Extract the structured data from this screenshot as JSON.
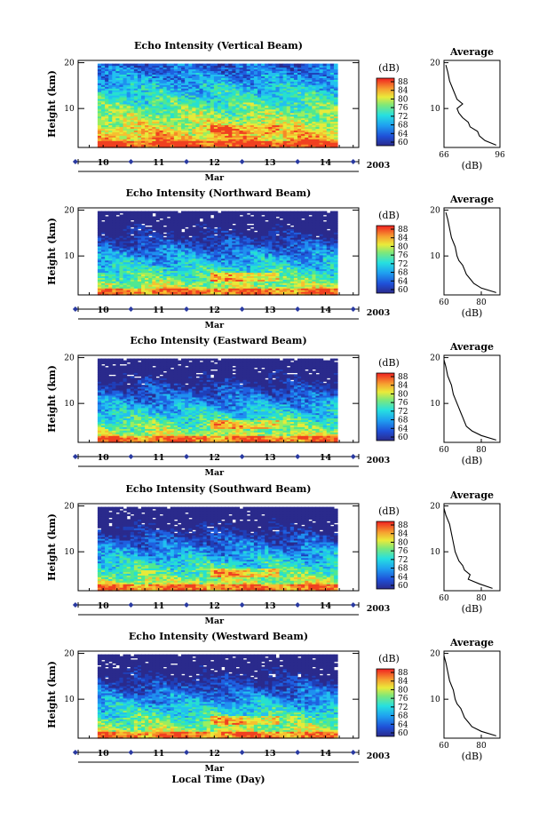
{
  "chart_data": [
    {
      "type": "heatmap",
      "title": "Echo Intensity (Vertical Beam)",
      "ylabel": "Height (km)",
      "yticks": [
        10,
        20
      ],
      "ylim": [
        1.5,
        20.5
      ],
      "x_tick_labels": [
        "10",
        "11",
        "12",
        "13",
        "14"
      ],
      "month_label": "Mar",
      "year_label": "2003",
      "colorbar": {
        "label": "(dB)",
        "ticks": [
          "60",
          "64",
          "68",
          "72",
          "76",
          "80",
          "84",
          "88"
        ],
        "range": [
          60,
          88
        ]
      },
      "data_extent_days": [
        9.9,
        14.1
      ],
      "profile": {
        "title": "Average",
        "xlabel": "(dB)",
        "xticks": [
          "66",
          "96"
        ],
        "xlim": [
          66,
          96
        ],
        "yticks": [
          10,
          20
        ],
        "height_km": [
          19.5,
          18,
          16,
          14,
          12,
          11,
          10,
          9,
          8,
          7,
          6,
          5,
          4,
          3,
          2
        ],
        "avg_db": [
          67,
          68,
          69,
          71,
          73,
          76,
          73,
          74,
          76,
          79,
          80,
          84,
          85,
          88,
          94
        ]
      }
    },
    {
      "type": "heatmap",
      "title": "Echo Intensity (Northward Beam)",
      "ylabel": "Height (km)",
      "yticks": [
        10,
        20
      ],
      "ylim": [
        1.5,
        20.5
      ],
      "x_tick_labels": [
        "10",
        "11",
        "12",
        "13",
        "14"
      ],
      "month_label": "Mar",
      "year_label": "2003",
      "colorbar": {
        "label": "(dB)",
        "ticks": [
          "60",
          "64",
          "68",
          "72",
          "76",
          "80",
          "84",
          "88"
        ],
        "range": [
          60,
          88
        ]
      },
      "data_extent_days": [
        9.9,
        14.1
      ],
      "profile": {
        "title": "Average",
        "xlabel": "(dB)",
        "xticks": [
          "60",
          "80"
        ],
        "xlim": [
          60,
          90
        ],
        "yticks": [
          10,
          20
        ],
        "height_km": [
          19.5,
          18,
          16,
          14,
          12,
          10,
          9,
          8,
          7,
          6,
          5,
          4,
          3,
          2
        ],
        "avg_db": [
          61,
          62,
          63,
          64,
          66,
          67,
          68,
          70,
          71,
          72,
          74,
          76,
          80,
          88
        ]
      }
    },
    {
      "type": "heatmap",
      "title": "Echo Intensity (Eastward Beam)",
      "ylabel": "Height (km)",
      "yticks": [
        10,
        20
      ],
      "ylim": [
        1.5,
        20.5
      ],
      "x_tick_labels": [
        "10",
        "11",
        "12",
        "13",
        "14"
      ],
      "month_label": "Mar",
      "year_label": "2003",
      "colorbar": {
        "label": "(dB)",
        "ticks": [
          "60",
          "64",
          "68",
          "72",
          "76",
          "80",
          "84",
          "88"
        ],
        "range": [
          60,
          88
        ]
      },
      "data_extent_days": [
        9.9,
        14.1
      ],
      "profile": {
        "title": "Average",
        "xlabel": "(dB)",
        "xticks": [
          "60",
          "80"
        ],
        "xlim": [
          60,
          90
        ],
        "yticks": [
          10,
          20
        ],
        "height_km": [
          19.5,
          18,
          16,
          14,
          12,
          10,
          9,
          8,
          7,
          6,
          5,
          4,
          3,
          2
        ],
        "avg_db": [
          60,
          61,
          62,
          64,
          65,
          67,
          68,
          69,
          70,
          71,
          72,
          75,
          80,
          88
        ]
      }
    },
    {
      "type": "heatmap",
      "title": "Echo Intensity (Southward Beam)",
      "ylabel": "Height (km)",
      "yticks": [
        10,
        20
      ],
      "ylim": [
        1.5,
        20.5
      ],
      "x_tick_labels": [
        "10",
        "11",
        "12",
        "13",
        "14"
      ],
      "month_label": "Mar",
      "year_label": "2003",
      "colorbar": {
        "label": "(dB)",
        "ticks": [
          "60",
          "64",
          "68",
          "72",
          "76",
          "80",
          "84",
          "88"
        ],
        "range": [
          60,
          88
        ]
      },
      "data_extent_days": [
        9.9,
        14.1
      ],
      "profile": {
        "title": "Average",
        "xlabel": "(dB)",
        "xticks": [
          "60",
          "80"
        ],
        "xlim": [
          60,
          90
        ],
        "yticks": [
          10,
          20
        ],
        "height_km": [
          19.5,
          18,
          16,
          14,
          12,
          10,
          8,
          7,
          6,
          5,
          4,
          3,
          2
        ],
        "avg_db": [
          60,
          61,
          63,
          64,
          65,
          66,
          68,
          70,
          71,
          74,
          73,
          79,
          86
        ]
      }
    },
    {
      "type": "heatmap",
      "title": "Echo Intensity (Westward Beam)",
      "ylabel": "Height (km)",
      "yticks": [
        10,
        20
      ],
      "ylim": [
        1.5,
        20.5
      ],
      "x_tick_labels": [
        "10",
        "11",
        "12",
        "13",
        "14"
      ],
      "month_label": "Mar",
      "year_label": "2003",
      "xlabel": "Local Time (Day)",
      "colorbar": {
        "label": "(dB)",
        "ticks": [
          "60",
          "64",
          "68",
          "72",
          "76",
          "80",
          "84",
          "88"
        ],
        "range": [
          60,
          88
        ]
      },
      "data_extent_days": [
        9.9,
        14.1
      ],
      "profile": {
        "title": "Average",
        "xlabel": "(dB)",
        "xticks": [
          "60",
          "80"
        ],
        "xlim": [
          60,
          90
        ],
        "yticks": [
          10,
          20
        ],
        "height_km": [
          19.5,
          18,
          16,
          14,
          12,
          10,
          9,
          8,
          7,
          6,
          5,
          4,
          3,
          2
        ],
        "avg_db": [
          60,
          61,
          62,
          63,
          65,
          66,
          67,
          69,
          70,
          71,
          73,
          75,
          80,
          88
        ]
      }
    }
  ]
}
